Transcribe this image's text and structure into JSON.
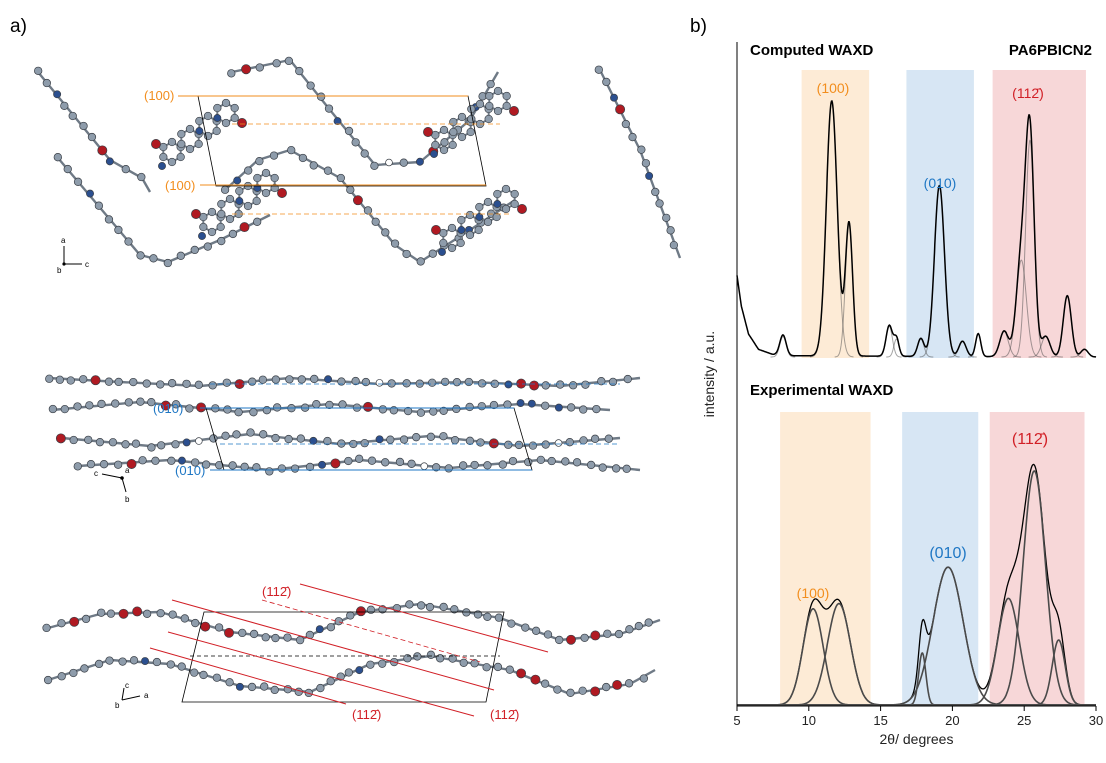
{
  "panel_a": {
    "label": "a)",
    "views": [
      {
        "axes": [
          "a",
          "b",
          "c"
        ],
        "planes": [
          "(100)",
          "(100)"
        ]
      },
      {
        "axes": [
          "c",
          "a",
          "b"
        ],
        "planes": [
          "(010)",
          "(010)"
        ]
      },
      {
        "axes": [
          "c",
          "b",
          "a"
        ],
        "planes": [
          "(112̄)",
          "(112̄)",
          "(112̄)"
        ]
      }
    ]
  },
  "panel_b": {
    "label": "b)"
  },
  "chart_data": {
    "type": "line",
    "title": "PA6PBICN2",
    "xlabel": "2θ/ degrees",
    "ylabel": "intensity / a.u.",
    "xlim": [
      5,
      30
    ],
    "xticks": [
      5,
      10,
      15,
      20,
      25,
      30
    ],
    "grid": false,
    "colors": {
      "orange": "#f28e1e",
      "blue": "#1f77c4",
      "red": "#d11f26",
      "curve": "#000000",
      "component": "#4a4a4a"
    },
    "panels": [
      {
        "name": "Computed WAXD",
        "regions": [
          {
            "label": "(100)",
            "x": [
              9.5,
              14.2
            ],
            "color": "#f28e1e"
          },
          {
            "label": "(010)",
            "x": [
              16.8,
              21.5
            ],
            "color": "#1f77c4"
          },
          {
            "label": "(112̄)",
            "x": [
              22.8,
              29.3
            ],
            "color": "#d11f26"
          }
        ],
        "series": [
          {
            "type": "baseline",
            "points": [
              [
                5.0,
                0.32
              ],
              [
                5.3,
                0.2
              ],
              [
                5.8,
                0.09
              ],
              [
                6.5,
                0.03
              ],
              [
                7.5,
                0.01
              ],
              [
                8.5,
                0.005
              ],
              [
                29.5,
                0.0
              ],
              [
                30,
                0.0
              ]
            ]
          },
          {
            "type": "peak",
            "center": 8.2,
            "height": 0.08,
            "width": 0.22
          },
          {
            "type": "peak",
            "center": 11.6,
            "height": 1.0,
            "width": 0.38,
            "region": 0
          },
          {
            "type": "peak",
            "center": 12.8,
            "height": 0.52,
            "width": 0.25,
            "region": 0
          },
          {
            "type": "peak",
            "center": 15.6,
            "height": 0.12,
            "width": 0.22
          },
          {
            "type": "peak",
            "center": 16.1,
            "height": 0.07,
            "width": 0.18
          },
          {
            "type": "peak",
            "center": 17.8,
            "height": 0.07,
            "width": 0.22,
            "region": 1
          },
          {
            "type": "peak",
            "center": 19.1,
            "height": 0.67,
            "width": 0.35,
            "region": 1
          },
          {
            "type": "peak",
            "center": 20.7,
            "height": 0.06,
            "width": 0.25,
            "region": 1
          },
          {
            "type": "peak",
            "center": 21.8,
            "height": 0.09,
            "width": 0.18
          },
          {
            "type": "peak",
            "center": 23.6,
            "height": 0.1,
            "width": 0.3,
            "region": 2
          },
          {
            "type": "peak",
            "center": 24.8,
            "height": 0.38,
            "width": 0.35,
            "region": 2
          },
          {
            "type": "peak",
            "center": 25.4,
            "height": 0.85,
            "width": 0.3,
            "region": 2
          },
          {
            "type": "peak",
            "center": 26.5,
            "height": 0.08,
            "width": 0.3,
            "region": 2
          },
          {
            "type": "peak",
            "center": 28.0,
            "height": 0.24,
            "width": 0.28,
            "region": 2
          },
          {
            "type": "peak",
            "center": 29.2,
            "height": 0.03,
            "width": 0.25,
            "region": 2
          }
        ]
      },
      {
        "name": "Experimental WAXD",
        "regions": [
          {
            "label": "(100)",
            "x": [
              8.0,
              14.3
            ],
            "color": "#f28e1e"
          },
          {
            "label": "(010)",
            "x": [
              16.5,
              21.8
            ],
            "color": "#1f77c4"
          },
          {
            "label": "(112̄)",
            "x": [
              22.6,
              29.2
            ],
            "color": "#d11f26"
          }
        ],
        "series": [
          {
            "type": "peak",
            "center": 10.3,
            "height": 0.37,
            "width": 0.7,
            "region": 0
          },
          {
            "type": "peak",
            "center": 12.1,
            "height": 0.39,
            "width": 0.8,
            "region": 0
          },
          {
            "type": "peak",
            "center": 17.9,
            "height": 0.2,
            "width": 0.25,
            "region": 1
          },
          {
            "type": "peak",
            "center": 19.7,
            "height": 0.53,
            "width": 1.05,
            "region": 1
          },
          {
            "type": "peak",
            "center": 23.9,
            "height": 0.41,
            "width": 0.75,
            "region": 2
          },
          {
            "type": "peak",
            "center": 25.7,
            "height": 0.9,
            "width": 0.78,
            "region": 2
          },
          {
            "type": "peak",
            "center": 27.4,
            "height": 0.25,
            "width": 0.45,
            "region": 2
          }
        ]
      }
    ]
  }
}
